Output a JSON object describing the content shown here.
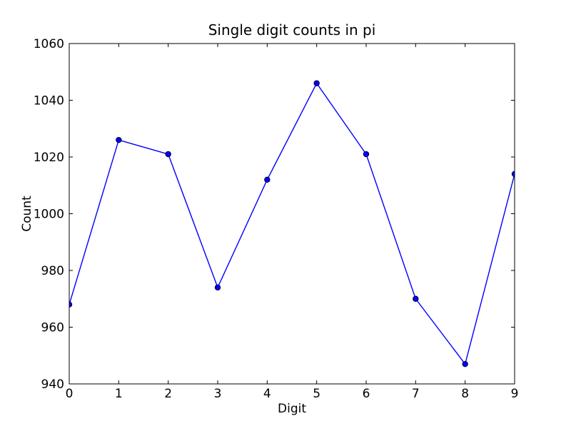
{
  "chart_data": {
    "type": "line",
    "title": "Single digit counts in pi",
    "xlabel": "Digit",
    "ylabel": "Count",
    "x": [
      0,
      1,
      2,
      3,
      4,
      5,
      6,
      7,
      8,
      9
    ],
    "values": [
      968,
      1026,
      1021,
      974,
      1012,
      1046,
      1021,
      970,
      947,
      1014
    ],
    "xlim": [
      0,
      9
    ],
    "ylim": [
      940,
      1060
    ],
    "xticks": [
      0,
      1,
      2,
      3,
      4,
      5,
      6,
      7,
      8,
      9
    ],
    "yticks": [
      940,
      960,
      980,
      1000,
      1020,
      1040,
      1060
    ],
    "grid": false,
    "legend": false,
    "line_color": "#0000ff",
    "marker": "circle",
    "marker_color": "#0000ff",
    "marker_edge_color": "#000000",
    "axes_color": "#000000",
    "background": "#ffffff"
  }
}
